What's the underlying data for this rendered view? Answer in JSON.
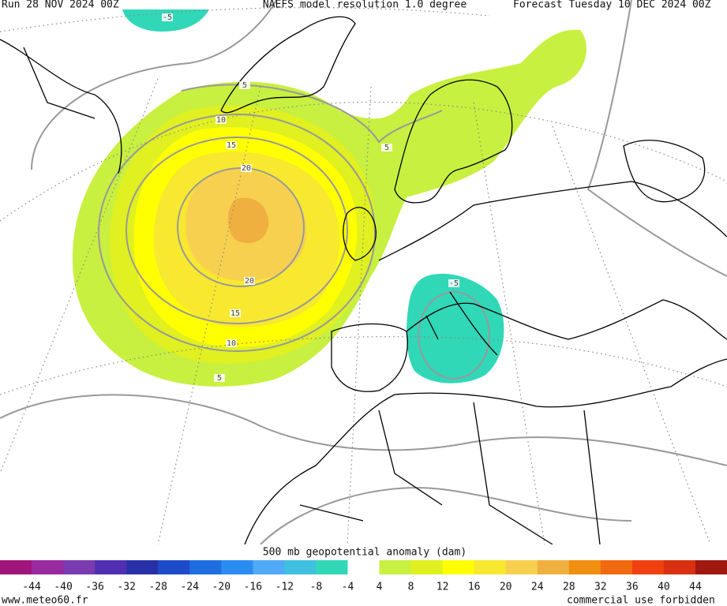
{
  "header": {
    "run": "Run 28 NOV 2024 00Z",
    "model": "NAEFS model resolution 1.0 degree",
    "forecast": "Forecast Tuesday 10 DEC 2024 00Z"
  },
  "colorbar": {
    "title": "500 mb geopotential anomaly (dam)",
    "colors": [
      "#a0157a",
      "#9a2aa0",
      "#7a3ab0",
      "#5030b0",
      "#2830a8",
      "#1e4cc8",
      "#1e6ee0",
      "#2a8cf0",
      "#50aaf8",
      "#40c0e0",
      "#30d8b8",
      "#ffffff",
      "#c8f040",
      "#e0f020",
      "#ffff00",
      "#f8e830",
      "#f8d050",
      "#f0b040",
      "#f09010",
      "#f06a10",
      "#f04010",
      "#d83010",
      "#a01810"
    ],
    "labels": [
      -44,
      -40,
      -36,
      -32,
      -28,
      -24,
      -20,
      -16,
      -12,
      -8,
      -4,
      4,
      8,
      12,
      16,
      20,
      24,
      28,
      32,
      36,
      40,
      44
    ]
  },
  "contour_labels": [
    "-5",
    "5",
    "10",
    "15",
    "20",
    "20",
    "15",
    "10",
    "5",
    "5",
    "-5"
  ],
  "footer": {
    "source": "www.meteo60.fr",
    "notice": "commercial use forbidden"
  }
}
